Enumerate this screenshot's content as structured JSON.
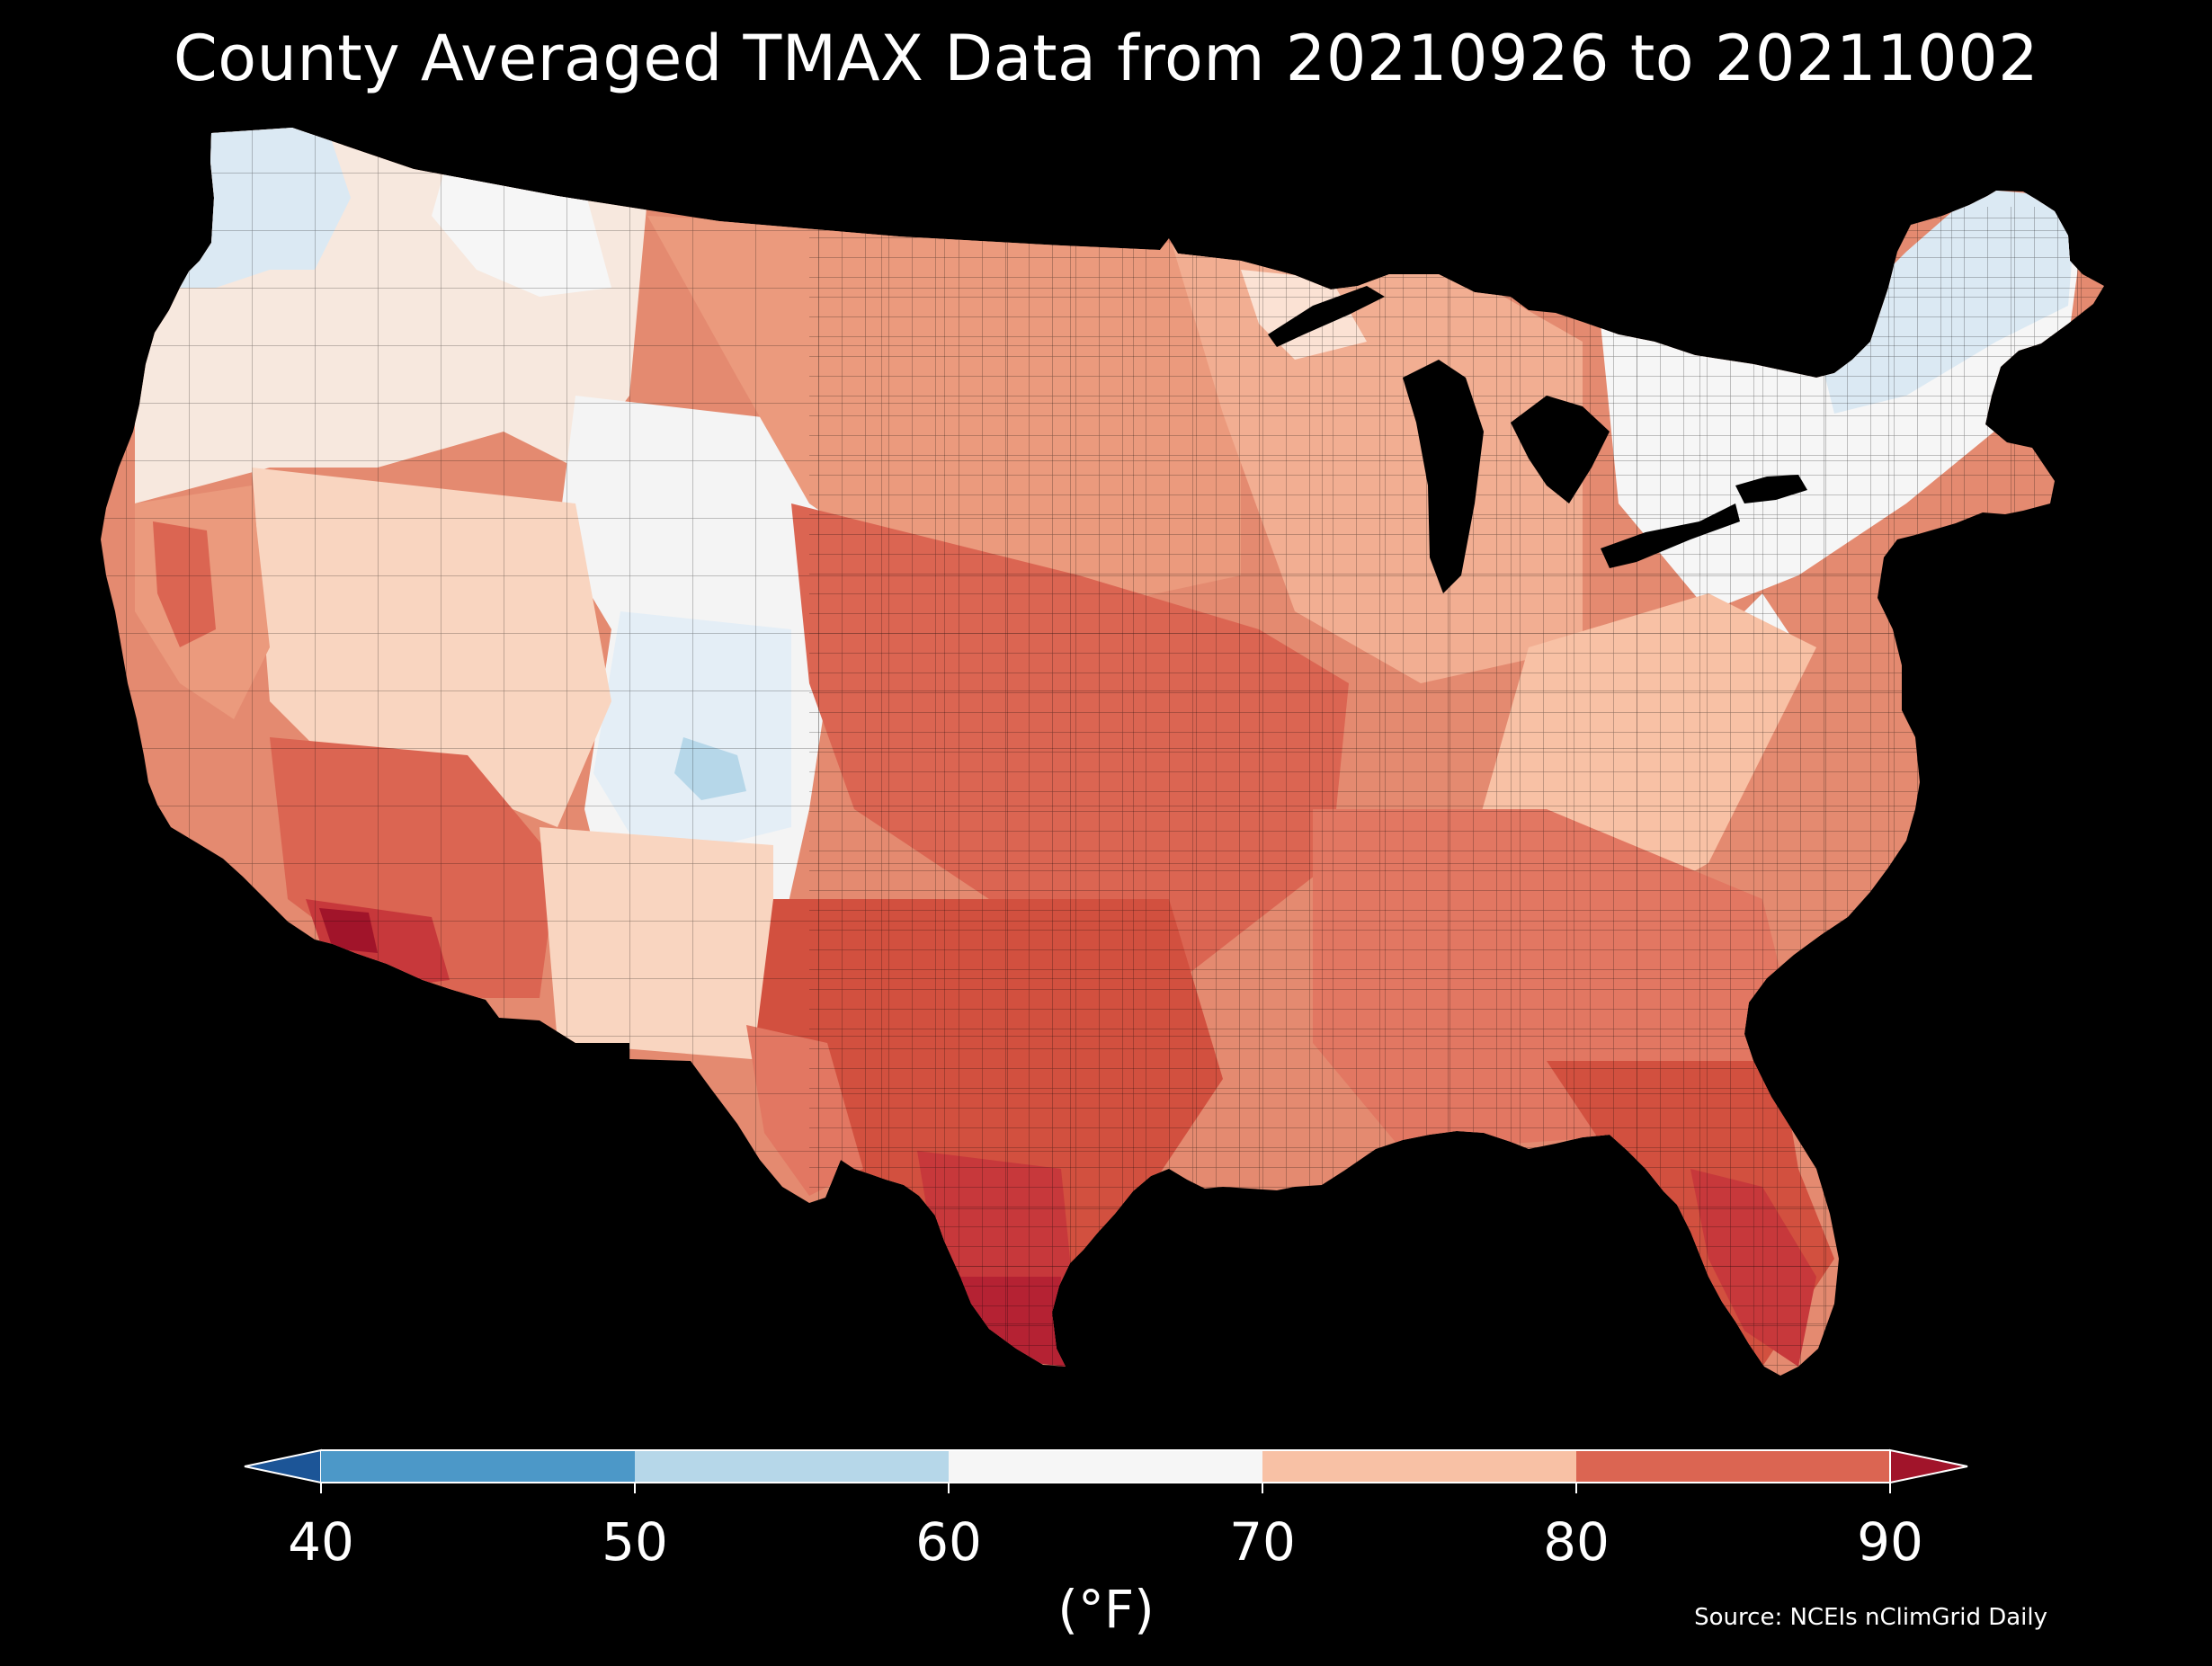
{
  "title": "County Averaged TMAX Data from 20210926 to 20211002",
  "colorbar": {
    "ticks": [
      "40",
      "50",
      "60",
      "70",
      "80",
      "90"
    ],
    "unit": "(°F)",
    "bins": [
      {
        "from": 40,
        "to": 50,
        "color": "#4c98c8"
      },
      {
        "from": 50,
        "to": 60,
        "color": "#b6d7e9"
      },
      {
        "from": 60,
        "to": 70,
        "color": "#f6f6f6"
      },
      {
        "from": 70,
        "to": 80,
        "color": "#f8c1a5"
      },
      {
        "from": 80,
        "to": 90,
        "color": "#db6552"
      }
    ],
    "under_color": "#1c5597",
    "over_color": "#a1142a"
  },
  "source": "Source: NCEIs nClimGrid Daily",
  "map": {
    "region": "Contiguous United States",
    "shading": "County averaged maximum temperature",
    "land_palette": [
      "#dbe9f3",
      "#f6f6f6",
      "#fbe2d4",
      "#f8c1a5",
      "#eb9a7d",
      "#db6552",
      "#c7383b",
      "#a1142a"
    ],
    "water_color": "#000000",
    "border_color": "#000000"
  }
}
